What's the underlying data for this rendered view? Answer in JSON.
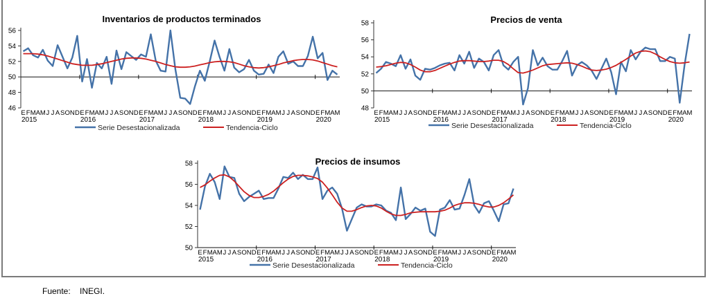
{
  "source": {
    "label": "Fuente:",
    "value": "INEGI."
  },
  "colors": {
    "serie": "#4472a8",
    "tendencia": "#cc1f1f",
    "axis": "#333333"
  },
  "legend": {
    "serie": "Serie Desestacionalizada",
    "tendencia": "Tendencia-Ciclo"
  },
  "month_letters": [
    "E",
    "F",
    "M",
    "A",
    "M",
    "J",
    "J",
    "A",
    "S",
    "O",
    "N",
    "D"
  ],
  "chart_data": [
    {
      "type": "line",
      "title": "Inventarios de productos terminados",
      "xlabel": "",
      "ylabel": "",
      "ylim": [
        46,
        56
      ],
      "yticks": [
        46,
        48,
        50,
        52,
        54,
        56
      ],
      "baseline": 50,
      "years": [
        "2015",
        "2016",
        "2017",
        "2018",
        "2019",
        "2020"
      ],
      "start": "2015-01",
      "end": "2020-05",
      "legend_position": "bottom",
      "series": [
        {
          "name": "Serie Desestacionalizada",
          "values": [
            53.3,
            53.7,
            52.8,
            52.5,
            53.5,
            52.1,
            51.4,
            54.1,
            52.6,
            51.1,
            52.5,
            55.3,
            49.4,
            52.3,
            48.6,
            51.8,
            51.1,
            52.6,
            49.1,
            53.4,
            51.0,
            53.2,
            52.7,
            52.2,
            52.9,
            52.6,
            55.5,
            52.1,
            50.8,
            50.7,
            56.0,
            51.0,
            47.3,
            47.2,
            46.5,
            48.8,
            50.8,
            49.5,
            52.0,
            54.7,
            52.6,
            50.8,
            53.6,
            51.2,
            50.6,
            51.0,
            52.2,
            50.8,
            50.3,
            50.4,
            51.6,
            50.5,
            52.6,
            53.3,
            51.7,
            52.0,
            51.4,
            51.4,
            52.7,
            55.2,
            52.4,
            53.1,
            49.6,
            50.8,
            50.3
          ]
        },
        {
          "name": "Tendencia-Ciclo",
          "values": [
            53.0,
            53.0,
            53.0,
            52.95,
            52.85,
            52.7,
            52.5,
            52.3,
            52.1,
            51.9,
            51.7,
            51.6,
            51.5,
            51.5,
            51.5,
            51.6,
            51.7,
            51.85,
            52.0,
            52.15,
            52.3,
            52.4,
            52.45,
            52.45,
            52.4,
            52.3,
            52.15,
            52.0,
            51.8,
            51.6,
            51.45,
            51.3,
            51.25,
            51.25,
            51.3,
            51.4,
            51.55,
            51.7,
            51.85,
            51.95,
            52.0,
            52.0,
            51.95,
            51.85,
            51.65,
            51.45,
            51.3,
            51.2,
            51.15,
            51.2,
            51.3,
            51.45,
            51.6,
            51.8,
            51.95,
            52.1,
            52.2,
            52.25,
            52.25,
            52.2,
            52.05,
            51.85,
            51.65,
            51.45,
            51.3
          ]
        }
      ]
    },
    {
      "type": "line",
      "title": "Precios de venta",
      "xlabel": "",
      "ylabel": "",
      "ylim": [
        48,
        58
      ],
      "yticks": [
        48,
        50,
        52,
        54,
        56,
        58
      ],
      "baseline": 50,
      "years": [
        "2015",
        "2016",
        "2017",
        "2018",
        "2019",
        "2020"
      ],
      "start": "2015-01",
      "end": "2020-05",
      "legend_position": "bottom",
      "series": [
        {
          "name": "Serie Desestacionalizada",
          "values": [
            52.1,
            52.6,
            53.4,
            53.2,
            52.9,
            54.2,
            52.6,
            53.7,
            51.8,
            51.3,
            52.6,
            52.5,
            52.7,
            53.0,
            53.2,
            53.3,
            52.4,
            54.2,
            53.2,
            54.6,
            52.7,
            53.8,
            53.4,
            52.4,
            54.2,
            54.8,
            53.0,
            52.5,
            53.4,
            54.0,
            48.4,
            50.3,
            54.8,
            53.0,
            53.9,
            52.9,
            52.5,
            52.5,
            53.5,
            54.7,
            51.8,
            53.0,
            53.4,
            53.0,
            52.4,
            51.4,
            52.6,
            53.8,
            52.2,
            49.6,
            53.4,
            52.3,
            54.8,
            53.7,
            54.6,
            55.1,
            54.9,
            54.9,
            53.5,
            53.5,
            54.0,
            53.8,
            48.6,
            53.1,
            56.7
          ]
        },
        {
          "name": "Tendencia-Ciclo",
          "values": [
            52.8,
            52.85,
            52.95,
            53.1,
            53.25,
            53.35,
            53.3,
            53.1,
            52.8,
            52.45,
            52.25,
            52.25,
            52.4,
            52.65,
            52.9,
            53.15,
            53.35,
            53.5,
            53.55,
            53.55,
            53.5,
            53.45,
            53.45,
            53.5,
            53.6,
            53.6,
            53.45,
            53.1,
            52.6,
            52.15,
            52.1,
            52.25,
            52.45,
            52.7,
            52.95,
            53.1,
            53.15,
            53.2,
            53.25,
            53.3,
            53.25,
            53.1,
            52.9,
            52.65,
            52.45,
            52.4,
            52.45,
            52.55,
            52.75,
            53.0,
            53.35,
            53.7,
            54.1,
            54.45,
            54.65,
            54.7,
            54.6,
            54.35,
            54.0,
            53.7,
            53.45,
            53.3,
            53.25,
            53.3,
            53.4
          ]
        }
      ]
    },
    {
      "type": "line",
      "title": "Precios de insumos",
      "xlabel": "",
      "ylabel": "",
      "ylim": [
        50,
        58
      ],
      "yticks": [
        50,
        52,
        54,
        56,
        58
      ],
      "baseline": 50,
      "years": [
        "2015",
        "2016",
        "2017",
        "2018",
        "2019",
        "2020"
      ],
      "start": "2015-01",
      "end": "2020-05",
      "legend_position": "bottom",
      "series": [
        {
          "name": "Serie Desestacionalizada",
          "values": [
            53.6,
            55.8,
            57.0,
            56.2,
            54.6,
            57.7,
            56.7,
            56.6,
            55.1,
            54.4,
            54.8,
            55.1,
            55.4,
            54.6,
            54.7,
            54.7,
            55.6,
            56.7,
            56.6,
            57.1,
            56.5,
            56.9,
            56.5,
            56.5,
            57.6,
            54.6,
            55.4,
            55.7,
            55.1,
            53.7,
            51.6,
            52.7,
            53.8,
            54.1,
            53.9,
            53.9,
            54.1,
            54.0,
            53.5,
            53.3,
            52.6,
            55.7,
            52.7,
            53.2,
            53.8,
            53.5,
            53.7,
            51.5,
            51.1,
            53.6,
            53.8,
            54.5,
            53.6,
            53.7,
            55.0,
            56.5,
            54.0,
            53.3,
            54.2,
            54.4,
            53.5,
            52.5,
            54.1,
            54.2,
            55.6
          ]
        },
        {
          "name": "Tendencia-Ciclo",
          "values": [
            55.7,
            55.95,
            56.3,
            56.6,
            56.85,
            56.9,
            56.7,
            56.3,
            55.8,
            55.3,
            54.95,
            54.75,
            54.75,
            54.85,
            55.05,
            55.35,
            55.75,
            56.15,
            56.5,
            56.75,
            56.85,
            56.85,
            56.8,
            56.7,
            56.55,
            56.2,
            55.65,
            55.0,
            54.3,
            53.75,
            53.45,
            53.45,
            53.6,
            53.8,
            53.95,
            54.0,
            53.95,
            53.75,
            53.45,
            53.2,
            53.05,
            53.05,
            53.15,
            53.3,
            53.35,
            53.4,
            53.4,
            53.4,
            53.4,
            53.45,
            53.55,
            53.75,
            54.0,
            54.15,
            54.25,
            54.25,
            54.2,
            54.1,
            53.95,
            53.85,
            53.85,
            54.0,
            54.25,
            54.6,
            55.0
          ]
        }
      ]
    }
  ]
}
